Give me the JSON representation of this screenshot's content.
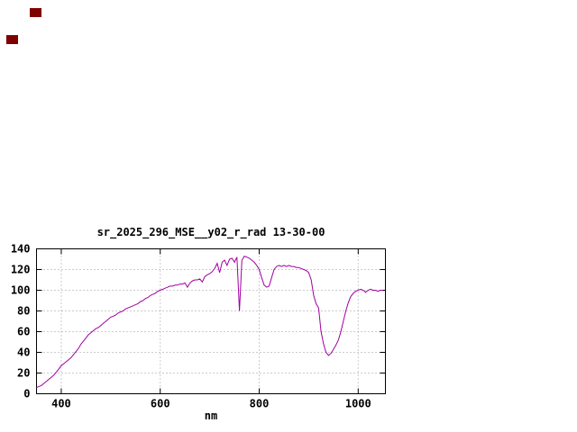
{
  "window": {
    "background": "#ffffff"
  },
  "decorations": {
    "squares": [
      {
        "color": "#7f0000"
      },
      {
        "color": "#7f0000"
      }
    ]
  },
  "chart_data": {
    "type": "line",
    "title": "sr_2025_296_MSE__y02_r_rad 13-30-00",
    "xlabel": "nm",
    "ylabel": "",
    "xlim": [
      350,
      1055
    ],
    "ylim": [
      0,
      140
    ],
    "x_ticks": [
      400,
      600,
      800,
      1000
    ],
    "y_ticks": [
      0,
      20,
      40,
      60,
      80,
      100,
      120,
      140
    ],
    "grid": true,
    "legend": "none",
    "line_color": "#a000a0",
    "series": [
      {
        "name": "sr_2025_296_MSE__y02_r_rad",
        "x": [
          350,
          355,
          360,
          365,
          370,
          375,
          380,
          385,
          390,
          395,
          400,
          405,
          410,
          415,
          420,
          425,
          430,
          435,
          440,
          445,
          450,
          455,
          460,
          465,
          470,
          475,
          480,
          485,
          490,
          495,
          500,
          505,
          510,
          515,
          520,
          525,
          530,
          535,
          540,
          545,
          550,
          555,
          560,
          565,
          570,
          575,
          580,
          585,
          590,
          595,
          600,
          605,
          610,
          615,
          620,
          625,
          630,
          635,
          640,
          645,
          650,
          655,
          660,
          665,
          670,
          675,
          680,
          685,
          690,
          695,
          700,
          705,
          710,
          715,
          720,
          725,
          730,
          735,
          740,
          745,
          750,
          755,
          760,
          765,
          770,
          775,
          780,
          785,
          790,
          795,
          800,
          805,
          810,
          815,
          820,
          825,
          830,
          835,
          840,
          845,
          850,
          855,
          860,
          865,
          870,
          875,
          880,
          885,
          890,
          895,
          900,
          905,
          910,
          915,
          920,
          925,
          930,
          935,
          940,
          945,
          950,
          955,
          960,
          965,
          970,
          975,
          980,
          985,
          990,
          995,
          1000,
          1005,
          1010,
          1015,
          1020,
          1025,
          1030,
          1035,
          1040,
          1045,
          1050
        ],
        "y": [
          6,
          7,
          8,
          10,
          12,
          14,
          16,
          18,
          21,
          24,
          27,
          29,
          31,
          33,
          35,
          38,
          41,
          44,
          48,
          51,
          54,
          57,
          59,
          61,
          63,
          64,
          66,
          68,
          70,
          72,
          74,
          75,
          76,
          78,
          79,
          80,
          82,
          83,
          84,
          85,
          86,
          87,
          89,
          90,
          92,
          93,
          95,
          96,
          97,
          99,
          100,
          101,
          102,
          103,
          104,
          104,
          105,
          105,
          106,
          106,
          107,
          103,
          107,
          109,
          110,
          110,
          111,
          108,
          113,
          115,
          116,
          118,
          121,
          126,
          117,
          127,
          129,
          124,
          130,
          131,
          127,
          132,
          80,
          129,
          133,
          132,
          131,
          129,
          127,
          124,
          120,
          112,
          105,
          103,
          104,
          112,
          120,
          123,
          124,
          123,
          124,
          123,
          124,
          123,
          123,
          122,
          122,
          121,
          120,
          119,
          117,
          110,
          95,
          87,
          83,
          60,
          48,
          40,
          37,
          39,
          43,
          47,
          52,
          60,
          70,
          80,
          88,
          94,
          97,
          99,
          100,
          101,
          100,
          98,
          100,
          101,
          100,
          100,
          99,
          100,
          100
        ]
      }
    ]
  }
}
